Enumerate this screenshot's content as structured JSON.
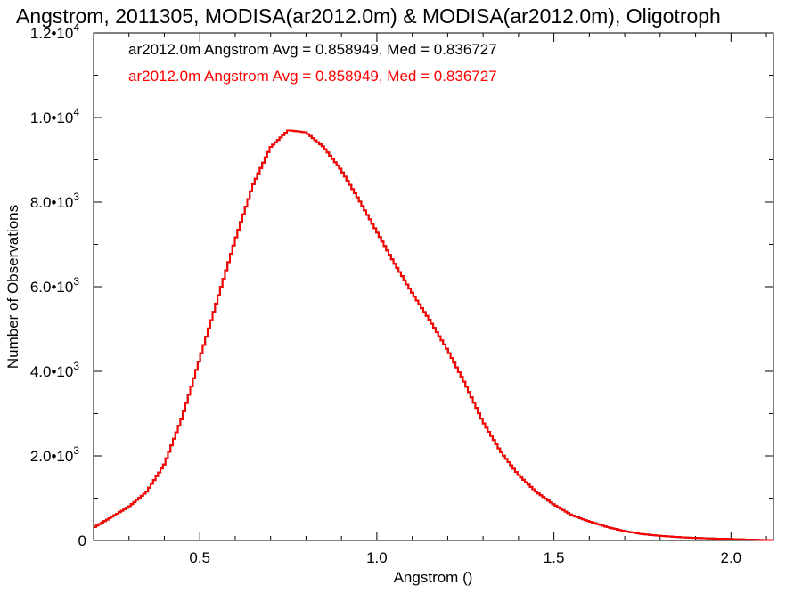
{
  "chart_data": {
    "type": "step",
    "title": "Angstrom, 2011305, MODISA(ar2012.0m) & MODISA(ar2012.0m), Oligotroph",
    "xlabel": "Angstrom ()",
    "ylabel": "Number of Observations",
    "xlim": [
      0.2,
      2.12
    ],
    "ylim": [
      0,
      12000
    ],
    "x_ticks": [
      0.5,
      1.0,
      1.5,
      2.0
    ],
    "x_tick_labels": [
      "0.5",
      "1.0",
      "1.5",
      "2.0"
    ],
    "y_ticks": [
      0,
      2000,
      4000,
      6000,
      8000,
      10000,
      12000
    ],
    "y_tick_labels": [
      {
        "mantissa": "0",
        "exp": ""
      },
      {
        "mantissa": "2.0•10",
        "exp": "3"
      },
      {
        "mantissa": "4.0•10",
        "exp": "3"
      },
      {
        "mantissa": "6.0•10",
        "exp": "3"
      },
      {
        "mantissa": "8.0•10",
        "exp": "3"
      },
      {
        "mantissa": "1.0•10",
        "exp": "4"
      },
      {
        "mantissa": "1.2•10",
        "exp": "4"
      }
    ],
    "legend": [
      {
        "text": "ar2012.0m Angstrom Avg = 0.858949, Med = 0.836727",
        "color": "#000000"
      },
      {
        "text": "ar2012.0m Angstrom Avg = 0.858949, Med = 0.836727",
        "color": "#ff0000"
      }
    ],
    "legend_placement": "top-left",
    "series": [
      {
        "color": "#000000",
        "points": [
          [
            0.2,
            300
          ],
          [
            0.25,
            550
          ],
          [
            0.3,
            800
          ],
          [
            0.35,
            1150
          ],
          [
            0.4,
            1800
          ],
          [
            0.45,
            2900
          ],
          [
            0.5,
            4300
          ],
          [
            0.55,
            5700
          ],
          [
            0.6,
            7100
          ],
          [
            0.65,
            8400
          ],
          [
            0.7,
            9300
          ],
          [
            0.75,
            9700
          ],
          [
            0.8,
            9650
          ],
          [
            0.85,
            9300
          ],
          [
            0.9,
            8750
          ],
          [
            0.95,
            8050
          ],
          [
            1.0,
            7300
          ],
          [
            1.05,
            6550
          ],
          [
            1.1,
            5850
          ],
          [
            1.15,
            5200
          ],
          [
            1.2,
            4500
          ],
          [
            1.25,
            3700
          ],
          [
            1.3,
            2800
          ],
          [
            1.35,
            2100
          ],
          [
            1.4,
            1550
          ],
          [
            1.45,
            1150
          ],
          [
            1.5,
            850
          ],
          [
            1.55,
            600
          ],
          [
            1.6,
            450
          ],
          [
            1.65,
            320
          ],
          [
            1.7,
            220
          ],
          [
            1.75,
            150
          ],
          [
            1.8,
            110
          ],
          [
            1.85,
            80
          ],
          [
            1.9,
            60
          ],
          [
            1.95,
            45
          ],
          [
            2.0,
            35
          ],
          [
            2.05,
            20
          ],
          [
            2.1,
            10
          ]
        ]
      },
      {
        "color": "#ff0000",
        "points": [
          [
            0.2,
            300
          ],
          [
            0.25,
            550
          ],
          [
            0.3,
            800
          ],
          [
            0.35,
            1150
          ],
          [
            0.4,
            1800
          ],
          [
            0.45,
            2900
          ],
          [
            0.5,
            4300
          ],
          [
            0.55,
            5700
          ],
          [
            0.6,
            7100
          ],
          [
            0.65,
            8400
          ],
          [
            0.7,
            9300
          ],
          [
            0.75,
            9700
          ],
          [
            0.8,
            9650
          ],
          [
            0.85,
            9300
          ],
          [
            0.9,
            8750
          ],
          [
            0.95,
            8050
          ],
          [
            1.0,
            7300
          ],
          [
            1.05,
            6550
          ],
          [
            1.1,
            5850
          ],
          [
            1.15,
            5200
          ],
          [
            1.2,
            4500
          ],
          [
            1.25,
            3700
          ],
          [
            1.3,
            2800
          ],
          [
            1.35,
            2100
          ],
          [
            1.4,
            1550
          ],
          [
            1.45,
            1150
          ],
          [
            1.5,
            850
          ],
          [
            1.55,
            600
          ],
          [
            1.6,
            450
          ],
          [
            1.65,
            320
          ],
          [
            1.7,
            220
          ],
          [
            1.75,
            150
          ],
          [
            1.8,
            110
          ],
          [
            1.85,
            80
          ],
          [
            1.9,
            60
          ],
          [
            1.95,
            45
          ],
          [
            2.0,
            35
          ],
          [
            2.05,
            20
          ],
          [
            2.1,
            10
          ]
        ]
      }
    ]
  }
}
